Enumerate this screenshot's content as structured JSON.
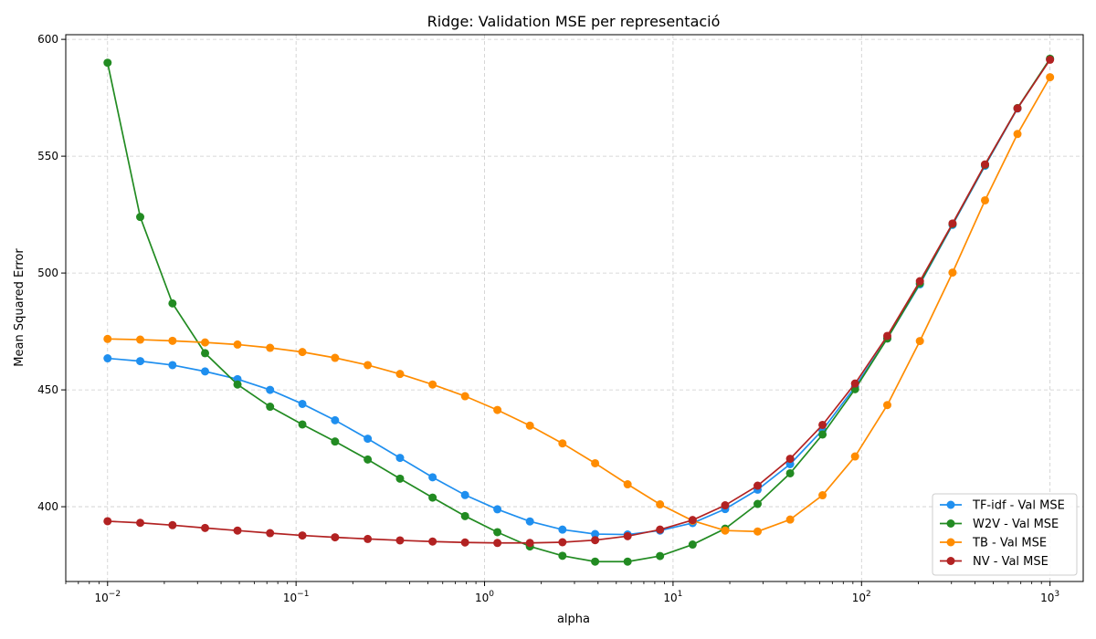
{
  "chart_data": {
    "type": "line",
    "title": "Ridge: Validation MSE per representació",
    "xlabel": "alpha",
    "ylabel": "Mean Squared Error",
    "xscale": "log",
    "xlim": [
      0.006,
      1500
    ],
    "ylim": [
      368,
      602
    ],
    "grid": true,
    "legend_position": "lower right",
    "x_ticks": [
      {
        "value": 0.01,
        "base": "10",
        "exp": "−2"
      },
      {
        "value": 0.1,
        "base": "10",
        "exp": "−1"
      },
      {
        "value": 1,
        "base": "10",
        "exp": "0"
      },
      {
        "value": 10,
        "base": "10",
        "exp": "1"
      },
      {
        "value": 100,
        "base": "10",
        "exp": "2"
      },
      {
        "value": 1000,
        "base": "10",
        "exp": "3"
      }
    ],
    "y_ticks": [
      400,
      450,
      500,
      550,
      600
    ],
    "x": [
      0.01,
      0.0149,
      0.0221,
      0.0329,
      0.0489,
      0.0728,
      0.108,
      0.161,
      0.24,
      0.356,
      0.53,
      0.788,
      1.17,
      1.74,
      2.59,
      3.86,
      5.74,
      8.53,
      12.7,
      18.9,
      28.1,
      41.8,
      62.1,
      92.4,
      137,
      204,
      304,
      452,
      672,
      1000
    ],
    "series": [
      {
        "name": "TF-idf - Val MSE",
        "color": "#1f8fef",
        "values": [
          463.5,
          462.3,
          460.6,
          457.9,
          454.6,
          450.0,
          444.0,
          437.0,
          429.1,
          420.9,
          412.6,
          405.0,
          398.9,
          393.7,
          390.2,
          388.3,
          388.1,
          389.8,
          393.0,
          399.0,
          407.3,
          418.2,
          432.8,
          451.3,
          472.0,
          495.2,
          520.6,
          545.9,
          570.4,
          591.6
        ]
      },
      {
        "name": "W2V - Val MSE",
        "color": "#228b22",
        "values": [
          590.0,
          524.0,
          487.0,
          465.7,
          452.3,
          442.8,
          435.2,
          427.9,
          420.2,
          412.0,
          403.9,
          396.0,
          389.1,
          383.0,
          379.0,
          376.5,
          376.5,
          378.9,
          383.8,
          390.6,
          401.2,
          414.3,
          430.9,
          450.3,
          472.0,
          495.6,
          521.0,
          546.3,
          570.6,
          591.7
        ]
      },
      {
        "name": "TB - Val MSE",
        "color": "#ff8c00",
        "values": [
          471.8,
          471.5,
          471.0,
          470.3,
          469.4,
          468.0,
          466.2,
          463.7,
          460.6,
          456.8,
          452.3,
          447.3,
          441.4,
          434.7,
          427.1,
          418.6,
          409.6,
          401.0,
          394.0,
          389.8,
          389.4,
          394.5,
          404.9,
          421.5,
          443.5,
          470.9,
          500.2,
          531.1,
          559.5,
          583.8
        ]
      },
      {
        "name": "NV - Val MSE",
        "color": "#b22222",
        "values": [
          393.8,
          393.1,
          392.1,
          390.9,
          389.8,
          388.7,
          387.7,
          386.9,
          386.2,
          385.6,
          385.1,
          384.7,
          384.5,
          384.5,
          384.8,
          385.7,
          387.4,
          390.2,
          394.3,
          400.6,
          409.0,
          420.5,
          435.0,
          452.7,
          473.1,
          496.5,
          521.2,
          546.5,
          570.5,
          591.3
        ]
      }
    ]
  }
}
